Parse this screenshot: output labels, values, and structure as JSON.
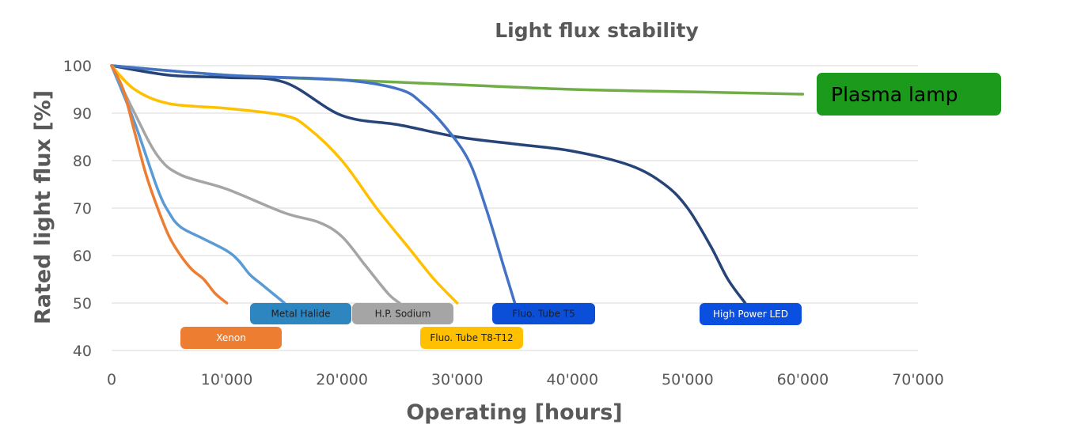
{
  "chart_data": {
    "type": "line",
    "title": "Light flux stability",
    "xlabel": "Operating [hours]",
    "ylabel": "Rated light flux [%]",
    "xlim": [
      0,
      70000
    ],
    "ylim": [
      40,
      100
    ],
    "x_ticks": [
      0,
      10000,
      20000,
      30000,
      40000,
      50000,
      60000,
      70000
    ],
    "x_tick_labels": [
      "0",
      "10'000",
      "20'000",
      "30'000",
      "40'000",
      "50'000",
      "60'000",
      "70'000"
    ],
    "y_ticks": [
      40,
      50,
      60,
      70,
      80,
      90,
      100
    ],
    "y_tick_labels": [
      "40",
      "50",
      "60",
      "70",
      "80",
      "90",
      "100"
    ],
    "grid": "horizontal",
    "series": [
      {
        "name": "Xenon",
        "color": "#ed7d31",
        "label_color": "#ed7d31",
        "label_text_color": "#ffffff",
        "points": [
          [
            0,
            100
          ],
          [
            1000,
            95
          ],
          [
            2000,
            86
          ],
          [
            3000,
            77
          ],
          [
            4000,
            70
          ],
          [
            5000,
            64
          ],
          [
            6000,
            60
          ],
          [
            7000,
            57
          ],
          [
            8000,
            55
          ],
          [
            9000,
            52
          ],
          [
            10000,
            50
          ]
        ]
      },
      {
        "name": "Metal Halide",
        "color": "#5b9bd5",
        "label_color": "#2e86c1",
        "label_text_color": "#1f1f1f",
        "points": [
          [
            0,
            100
          ],
          [
            2000,
            88
          ],
          [
            4000,
            74
          ],
          [
            5000,
            69
          ],
          [
            6000,
            66
          ],
          [
            8000,
            63.5
          ],
          [
            10000,
            61
          ],
          [
            11000,
            59
          ],
          [
            12000,
            56
          ],
          [
            13000,
            54
          ],
          [
            14000,
            52
          ],
          [
            15000,
            50
          ]
        ]
      },
      {
        "name": "H.P. Sodium",
        "color": "#a5a5a5",
        "label_color": "#a5a5a5",
        "label_text_color": "#1f1f1f",
        "points": [
          [
            0,
            100
          ],
          [
            2000,
            90
          ],
          [
            4000,
            81
          ],
          [
            6000,
            77
          ],
          [
            10000,
            74
          ],
          [
            15000,
            69
          ],
          [
            18000,
            67
          ],
          [
            20000,
            64
          ],
          [
            22000,
            58
          ],
          [
            24000,
            52
          ],
          [
            25000,
            50
          ]
        ]
      },
      {
        "name": "Fluo. Tube T8-T12",
        "color": "#ffc000",
        "label_color": "#ffc000",
        "label_text_color": "#1f1f1f",
        "points": [
          [
            0,
            100
          ],
          [
            2000,
            95
          ],
          [
            5000,
            92
          ],
          [
            10000,
            91
          ],
          [
            15000,
            89.5
          ],
          [
            17000,
            87
          ],
          [
            20000,
            80
          ],
          [
            23000,
            70
          ],
          [
            26000,
            61
          ],
          [
            28000,
            55
          ],
          [
            30000,
            50
          ]
        ]
      },
      {
        "name": "Fluo. Tube T5",
        "color": "#4472c4",
        "label_color": "#0b4fd8",
        "label_text_color": "#1f1f1f",
        "points": [
          [
            0,
            100
          ],
          [
            10000,
            98
          ],
          [
            20000,
            97
          ],
          [
            25000,
            95
          ],
          [
            27000,
            92
          ],
          [
            29000,
            87
          ],
          [
            31000,
            80
          ],
          [
            32500,
            70
          ],
          [
            34000,
            58
          ],
          [
            35000,
            50
          ]
        ]
      },
      {
        "name": "High Power LED",
        "color": "#264478",
        "label_color": "#0b4fe0",
        "label_text_color": "#ffffff",
        "points": [
          [
            0,
            100
          ],
          [
            5000,
            98
          ],
          [
            10000,
            97.5
          ],
          [
            15000,
            96.5
          ],
          [
            20000,
            89.5
          ],
          [
            25000,
            87.5
          ],
          [
            30000,
            85
          ],
          [
            35000,
            83.5
          ],
          [
            40000,
            82
          ],
          [
            45000,
            79
          ],
          [
            48000,
            75
          ],
          [
            50000,
            70
          ],
          [
            52000,
            62
          ],
          [
            53500,
            55
          ],
          [
            55000,
            50
          ]
        ]
      },
      {
        "name": "Plasma lamp",
        "color": "#70ad47",
        "label_color": "#1b9a1b",
        "label_text_color": "#000000",
        "points": [
          [
            0,
            100
          ],
          [
            10000,
            98
          ],
          [
            20000,
            97
          ],
          [
            30000,
            96
          ],
          [
            40000,
            95
          ],
          [
            50000,
            94.5
          ],
          [
            60000,
            94
          ]
        ]
      }
    ]
  }
}
